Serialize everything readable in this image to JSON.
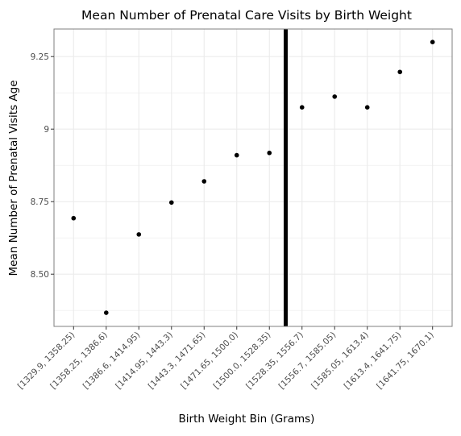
{
  "chart_data": {
    "type": "scatter",
    "title": "Mean Number of Prenatal Care Visits by Birth Weight",
    "xlabel": "Birth Weight Bin (Grams)",
    "ylabel": "Mean Number of Prenatal Visits Age",
    "categories": [
      "[1329.9, 1358.25)",
      "[1358.25, 1386.6)",
      "[1386.6, 1414.95)",
      "[1414.95, 1443.3)",
      "[1443.3, 1471.65)",
      "[1471.65, 1500.0)",
      "[1500.0, 1528.35)",
      "[1528.35, 1556.7)",
      "[1556.7, 1585.05)",
      "[1585.05, 1613.4)",
      "[1613.4, 1641.75)",
      "[1641.75, 1670.1)"
    ],
    "values": [
      8.693,
      8.367,
      8.637,
      8.747,
      8.82,
      8.91,
      8.918,
      9.075,
      9.112,
      9.075,
      9.197,
      9.3
    ],
    "ylim": [
      8.32,
      9.345
    ],
    "yticks": [
      8.5,
      8.75,
      9,
      9.25
    ],
    "ytick_labels": [
      "8.50",
      "8.75",
      "9",
      "9.25"
    ],
    "threshold_line": {
      "x_position": 6.5,
      "color": "#000000"
    },
    "grid": true,
    "colors": {
      "points": "#000000",
      "grid": "#ebebeb",
      "panel_border": "#7f7f7f"
    }
  }
}
